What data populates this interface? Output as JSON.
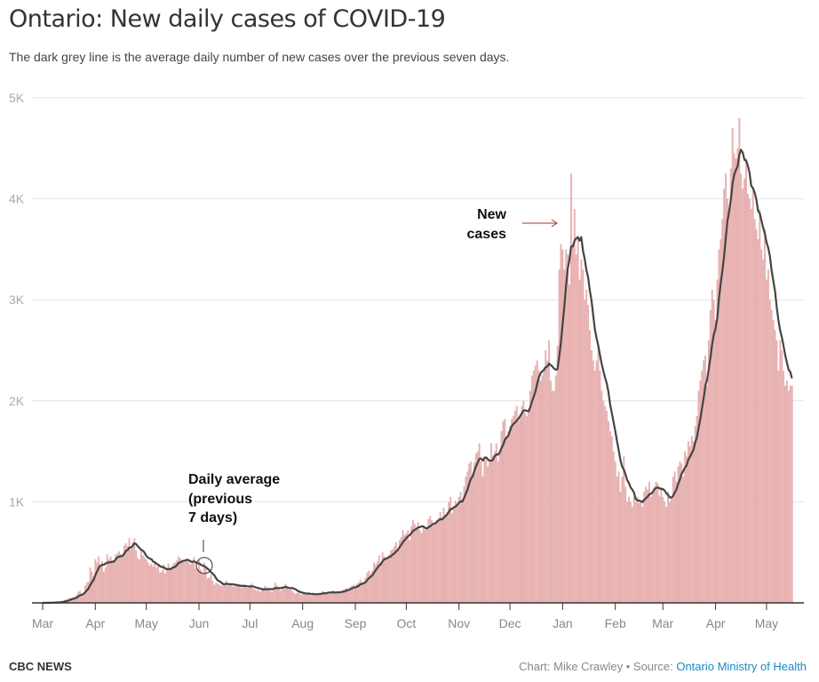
{
  "header": {
    "title": "Ontario: New daily cases of COVID-19",
    "subtitle": "The dark grey line is the average daily number of new cases over the previous seven days."
  },
  "footer": {
    "brand": "CBC NEWS",
    "credit": "Chart: Mike Crawley • Source: ",
    "source_link": "Ontario Ministry of Health"
  },
  "chart_data": {
    "type": "bar",
    "title": "Ontario: New daily cases of COVID-19",
    "start_date": "2020-03-01",
    "ylim": [
      0,
      5000
    ],
    "y_ticks": [
      {
        "v": 1000,
        "label": "1K"
      },
      {
        "v": 2000,
        "label": "2K"
      },
      {
        "v": 3000,
        "label": "3K"
      },
      {
        "v": 4000,
        "label": "4K"
      },
      {
        "v": 5000,
        "label": "5K"
      }
    ],
    "x_ticks": [
      {
        "day": 0,
        "label": "Mar"
      },
      {
        "day": 31,
        "label": "Apr"
      },
      {
        "day": 61,
        "label": "May"
      },
      {
        "day": 92,
        "label": "Jun"
      },
      {
        "day": 122,
        "label": "Jul"
      },
      {
        "day": 153,
        "label": "Aug"
      },
      {
        "day": 184,
        "label": "Sep"
      },
      {
        "day": 214,
        "label": "Oct"
      },
      {
        "day": 245,
        "label": "Nov"
      },
      {
        "day": 275,
        "label": "Dec"
      },
      {
        "day": 306,
        "label": "Jan"
      },
      {
        "day": 337,
        "label": "Feb"
      },
      {
        "day": 365,
        "label": "Mar"
      },
      {
        "day": 396,
        "label": "Apr"
      },
      {
        "day": 426,
        "label": "May"
      }
    ],
    "grid": true,
    "colors": {
      "bars": "#e8b1b1",
      "average_line": "#444444",
      "arrow": "#a33"
    },
    "series": [
      {
        "name": "New cases",
        "type": "bar",
        "values": [
          0,
          0,
          1,
          2,
          3,
          3,
          5,
          3,
          6,
          5,
          10,
          17,
          20,
          32,
          29,
          43,
          49,
          50,
          54,
          60,
          79,
          110,
          120,
          85,
          100,
          170,
          200,
          210,
          350,
          310,
          260,
          430,
          400,
          460,
          370,
          410,
          310,
          350,
          480,
          430,
          460,
          420,
          400,
          480,
          490,
          510,
          480,
          470,
          570,
          590,
          560,
          640,
          530,
          600,
          640,
          520,
          440,
          430,
          520,
          470,
          450,
          430,
          400,
          370,
          390,
          360,
          410,
          350,
          370,
          300,
          310,
          380,
          290,
          320,
          390,
          340,
          360,
          390,
          400,
          420,
          460,
          440,
          410,
          400,
          410,
          440,
          400,
          380,
          400,
          450,
          340,
          340,
          420,
          330,
          290,
          400,
          350,
          240,
          250,
          280,
          220,
          180,
          200,
          190,
          180,
          170,
          180,
          190,
          220,
          180,
          170,
          180,
          160,
          170,
          160,
          190,
          170,
          150,
          180,
          160,
          150,
          150,
          170,
          190,
          140,
          130,
          120,
          130,
          110,
          140,
          150,
          170,
          130,
          130,
          120,
          110,
          160,
          200,
          170,
          140,
          120,
          150,
          140,
          190,
          160,
          130,
          140,
          120,
          100,
          90,
          100,
          110,
          80,
          100,
          90,
          80,
          90,
          95,
          70,
          100,
          80,
          80,
          90,
          100,
          100,
          120,
          90,
          100,
          100,
          110,
          100,
          120,
          90,
          110,
          100,
          110,
          120,
          130,
          140,
          150,
          130,
          160,
          170,
          180,
          150,
          190,
          200,
          230,
          200,
          210,
          250,
          300,
          320,
          290,
          320,
          400,
          380,
          410,
          470,
          400,
          500,
          460,
          430,
          440,
          480,
          520,
          530,
          560,
          600,
          530,
          620,
          650,
          720,
          670,
          690,
          720,
          620,
          760,
          820,
          780,
          740,
          800,
          720,
          690,
          750,
          720,
          730,
          830,
          860,
          820,
          770,
          780,
          820,
          840,
          900,
          850,
          940,
          870,
          900,
          1000,
          1050,
          890,
          960,
          1010,
          980,
          1050,
          1100,
          1020,
          1150,
          1250,
          1300,
          1380,
          1400,
          1250,
          1390,
          1480,
          1500,
          1580,
          1400,
          1250,
          1450,
          1420,
          1350,
          1400,
          1580,
          1460,
          1500,
          1580,
          1400,
          1500,
          1700,
          1800,
          1820,
          1650,
          1700,
          1750,
          1820,
          1850,
          1900,
          1950,
          1800,
          1870,
          1950,
          2000,
          1880,
          1850,
          1920,
          2100,
          2250,
          2300,
          2350,
          2400,
          2300,
          2200,
          2250,
          2330,
          2500,
          2400,
          2600,
          2200,
          2100,
          2100,
          2250,
          2550,
          3300,
          3550,
          3500,
          3300,
          3500,
          3450,
          3150,
          4250,
          3550,
          3900,
          3450,
          3600,
          3200,
          3400,
          3300,
          3000,
          3100,
          2950,
          2700,
          2500,
          2400,
          2300,
          2400,
          2550,
          2300,
          2100,
          2000,
          1950,
          1900,
          1800,
          1700,
          1650,
          1500,
          1400,
          1250,
          1300,
          1100,
          1250,
          1450,
          1150,
          1000,
          1050,
          1000,
          950,
          1050,
          1000,
          1050,
          990,
          1000,
          950,
          1100,
          1150,
          1120,
          1200,
          1050,
          1100,
          1150,
          1200,
          1180,
          1060,
          1150,
          1050,
          1000,
          950,
          1100,
          1000,
          1050,
          1250,
          1300,
          1200,
          1350,
          1400,
          1380,
          1250,
          1500,
          1450,
          1600,
          1550,
          1650,
          1600,
          1750,
          1850,
          2100,
          2200,
          2300,
          2400,
          2450,
          2150,
          2600,
          2900,
          3100,
          3000,
          2800,
          3200,
          3500,
          3600,
          3800,
          4100,
          4250,
          4000,
          3900,
          4300,
          4700,
          4450,
          4400,
          4500,
          4800,
          4250,
          4100,
          4200,
          4400,
          4050,
          4000,
          3900,
          4100,
          3800,
          3700,
          3600,
          3900,
          3500,
          3400,
          3700,
          3200,
          3300,
          3000,
          2900,
          2800,
          2700,
          2600,
          2300,
          2600,
          2500,
          2300,
          2150,
          2200,
          2100,
          2150,
          2150
        ]
      },
      {
        "name": "Daily average (previous 7 days)",
        "type": "line",
        "window": 7
      }
    ],
    "annotations": {
      "new_cases": [
        "New",
        "cases"
      ],
      "daily_average": [
        "Daily average",
        "(previous",
        "7 days)"
      ]
    }
  }
}
